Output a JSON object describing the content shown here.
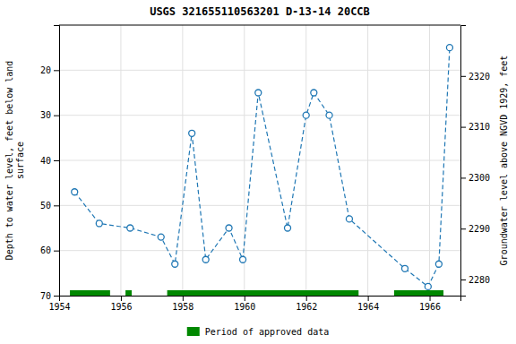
{
  "chart_data": {
    "type": "line",
    "title": "USGS 321655110563201 D-13-14 20CCB",
    "ylabel": "Depth to water level, feet below land\nsurface",
    "y2label": "Groundwater level above NGVD 1929, feet",
    "x": [
      1954.5,
      1955.3,
      1956.3,
      1957.3,
      1957.75,
      1958.3,
      1958.75,
      1959.5,
      1959.95,
      1960.45,
      1961.4,
      1962.0,
      1962.25,
      1962.75,
      1963.4,
      1965.2,
      1965.95,
      1966.3,
      1966.65
    ],
    "series": [
      {
        "type": "line",
        "marker": "circle",
        "line_style": "dashed",
        "values": [
          47,
          54,
          55,
          57,
          63,
          34,
          62,
          55,
          62,
          25,
          55,
          30,
          25,
          30,
          53,
          64,
          68,
          63,
          15
        ]
      },
      {
        "type": "span",
        "name": "Period of approved data",
        "color": "#008800",
        "intervals": [
          [
            1954.35,
            1955.65
          ],
          [
            1956.15,
            1956.35
          ],
          [
            1957.5,
            1963.7
          ],
          [
            1964.85,
            1966.45
          ]
        ]
      }
    ],
    "xlim": [
      1954,
      1967
    ],
    "xticks": [
      1954,
      1956,
      1958,
      1960,
      1962,
      1964,
      1966
    ],
    "ylim": [
      70,
      10
    ],
    "yticks": [
      20,
      30,
      40,
      50,
      60,
      70
    ],
    "y2lim": [
      2276.833,
      2330.0
    ],
    "y2ticks": [
      2280,
      2290,
      2300,
      2310,
      2320
    ],
    "grid": true,
    "legend": "bottom"
  }
}
